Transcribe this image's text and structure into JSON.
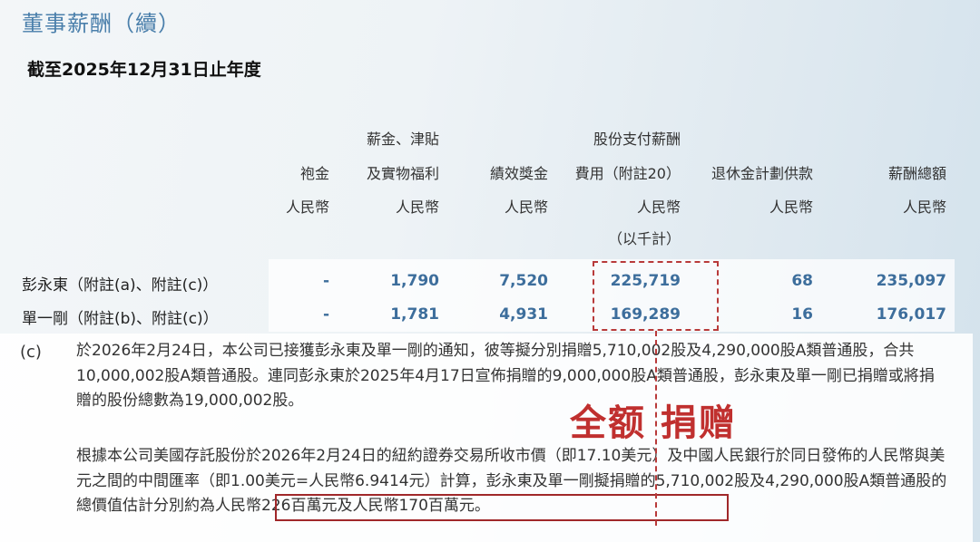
{
  "title": "董事薪酬（續）",
  "subtitle": "截至2025年12月31日止年度",
  "columns": [
    {
      "lines": [
        "袍金",
        "人民幣"
      ]
    },
    {
      "lines": [
        "薪金、津貼",
        "及實物福利",
        "人民幣"
      ]
    },
    {
      "lines": [
        "績效獎金",
        "人民幣"
      ]
    },
    {
      "lines": [
        "股份支付薪酬",
        "費用（附註20）",
        "人民幣"
      ]
    },
    {
      "lines": [
        "退休金計劃供款",
        "人民幣"
      ]
    },
    {
      "lines": [
        "薪酬總額",
        "人民幣"
      ]
    }
  ],
  "unit_note": "（以千計）",
  "rows": [
    {
      "name": "彭永東（附註(a)、附註(c)）",
      "values": [
        "-",
        "1,790",
        "7,520",
        "225,719",
        "68",
        "235,097"
      ]
    },
    {
      "name": "單一剛（附註(b)、附註(c)）",
      "values": [
        "-",
        "1,781",
        "4,931",
        "169,289",
        "16",
        "176,017"
      ]
    }
  ],
  "note": {
    "label": "(c)",
    "para1": "於2026年2月24日，本公司已接獲彭永東及單一剛的通知，彼等擬分別捐贈5,710,002股及4,290,000股A類普通股，合共10,000,002股A類普通股。連同彭永東於2025年4月17日宣佈捐贈的9,000,000股A類普通股，彭永東及單一剛已捐贈或將捐贈的股份總數為19,000,002股。",
    "para2_pre": "根據本公司美國存託股份於2026年2月24日的紐約證券交易所收市價（即17.10美元）及中國人民銀行於同日發佈的人民幣與美元之間的中間匯率（即1.00美元=人民幣6.9414元）計算，彭永東及單一剛擬捐贈的5,710,002股及4,290,000股A類普通股的",
    "para2_highlight": "總價值估計分別約為人民幣226百萬元及人民幣170百萬元。"
  },
  "annotation": "全额 捐赠",
  "colors": {
    "title": "#4a7fab",
    "values": "#3d6e9c",
    "annotation": "#c0302f"
  }
}
